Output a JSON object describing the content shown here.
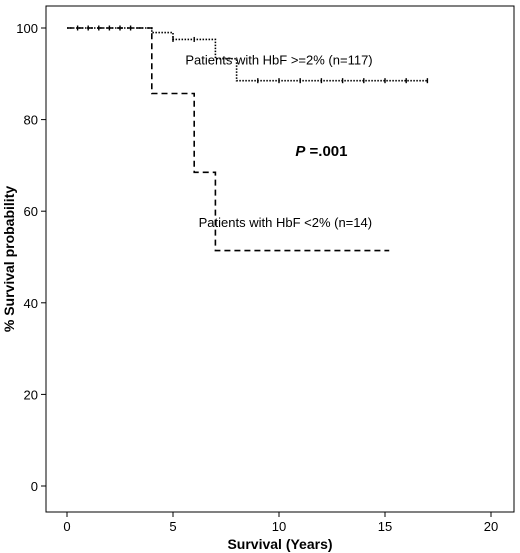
{
  "chart_data": {
    "type": "line",
    "xlabel": "Survival (Years)",
    "ylabel": "% Survival probability",
    "xlim": [
      -1,
      22
    ],
    "ylim": [
      -3,
      103
    ],
    "xticks": [
      "0",
      "5",
      "10",
      "15",
      "20"
    ],
    "yticks": [
      "0",
      "20",
      "40",
      "60",
      "80",
      "100"
    ],
    "grid": false,
    "series": [
      {
        "name": "Patients with HbF >=2% (n=117)",
        "style": "dotted",
        "steps": [
          [
            0,
            100
          ],
          [
            4,
            99
          ],
          [
            5,
            97.5
          ],
          [
            7,
            93.3
          ],
          [
            8,
            88.5
          ],
          [
            17,
            88.5
          ]
        ],
        "censor_marks": [
          [
            0.5,
            100
          ],
          [
            1,
            100
          ],
          [
            1.5,
            100
          ],
          [
            2,
            100
          ],
          [
            2.5,
            100
          ],
          [
            3,
            100
          ],
          [
            5,
            97.5
          ],
          [
            6,
            97.5
          ],
          [
            9,
            88.5
          ],
          [
            10,
            88.5
          ],
          [
            11,
            88.5
          ],
          [
            12,
            88.5
          ],
          [
            13,
            88.5
          ],
          [
            14,
            88.5
          ],
          [
            15,
            88.5
          ],
          [
            16,
            88.5
          ],
          [
            17,
            88.5
          ]
        ]
      },
      {
        "name": "Patients with HbF <2% (n=14)",
        "style": "dashed",
        "steps": [
          [
            0,
            100
          ],
          [
            4,
            85.7
          ],
          [
            6,
            68.5
          ],
          [
            7,
            51.4
          ],
          [
            15.2,
            51.4
          ]
        ],
        "censor_marks": []
      }
    ],
    "annotations": [
      {
        "text": "Patients with HbF >=2% (n=117)",
        "x": 10,
        "y": 92
      },
      {
        "text": "Patients with HbF <2% (n=14)",
        "x": 10.3,
        "y": 56.5
      },
      {
        "text_prefix": "P",
        "text": " =.001",
        "x": 12,
        "y": 72
      }
    ]
  }
}
